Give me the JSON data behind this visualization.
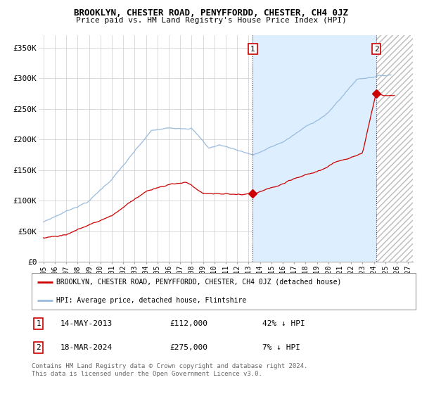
{
  "title": "BROOKLYN, CHESTER ROAD, PENYFFORDD, CHESTER, CH4 0JZ",
  "subtitle": "Price paid vs. HM Land Registry's House Price Index (HPI)",
  "ylabel_ticks": [
    "£0",
    "£50K",
    "£100K",
    "£150K",
    "£200K",
    "£250K",
    "£300K",
    "£350K"
  ],
  "ytick_vals": [
    0,
    50000,
    100000,
    150000,
    200000,
    250000,
    300000,
    350000
  ],
  "ylim": [
    0,
    370000
  ],
  "xlim_start": 1994.6,
  "xlim_end": 2027.4,
  "red_color": "#cc0000",
  "blue_color": "#99bbdd",
  "marker1_x": 2013.37,
  "marker1_y": 112000,
  "marker2_x": 2024.22,
  "marker2_y": 275000,
  "vline1_x": 2013.37,
  "vline2_x": 2024.22,
  "shade_color": "#ddeeff",
  "hatch_color": "#dddddd",
  "legend_label_red": "BROOKLYN, CHESTER ROAD, PENYFFORDD, CHESTER, CH4 0JZ (detached house)",
  "legend_label_blue": "HPI: Average price, detached house, Flintshire",
  "annotation1_date": "14-MAY-2013",
  "annotation1_price": "£112,000",
  "annotation1_hpi": "42% ↓ HPI",
  "annotation2_date": "18-MAR-2024",
  "annotation2_price": "£275,000",
  "annotation2_hpi": "7% ↓ HPI",
  "footer": "Contains HM Land Registry data © Crown copyright and database right 2024.\nThis data is licensed under the Open Government Licence v3.0.",
  "bg_color": "#ffffff",
  "grid_color": "#cccccc"
}
